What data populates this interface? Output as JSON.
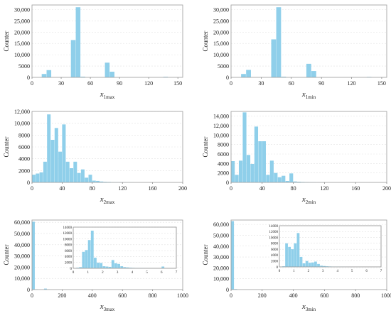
{
  "colors": {
    "bar": "#8fcfea",
    "frame": "#9a9a9a",
    "grid": "#e2e2e2"
  },
  "chart_data": [
    {
      "type": "bar",
      "id": "x1max",
      "xlabel_main": "x",
      "xlabel_sub": "1max",
      "ylabel": "Counter",
      "xlim": [
        0,
        155
      ],
      "ylim": [
        0,
        32000
      ],
      "xticks": [
        0,
        30,
        60,
        90,
        120,
        150
      ],
      "yticks": [
        0,
        5000,
        10000,
        15000,
        20000,
        25000,
        30000
      ],
      "ytick_labels": [
        "0",
        "5000",
        "10,000",
        "15,000",
        "20,000",
        "25,000",
        "30,000"
      ],
      "bin_width": 5,
      "bins": [
        [
          10,
          1500
        ],
        [
          15,
          3200
        ],
        [
          40,
          16500
        ],
        [
          45,
          31000
        ],
        [
          50,
          300
        ],
        [
          75,
          6500
        ],
        [
          80,
          2500
        ],
        [
          135,
          250
        ]
      ]
    },
    {
      "type": "bar",
      "id": "x1min",
      "xlabel_main": "x",
      "xlabel_sub": "1min",
      "ylabel": "Counter",
      "xlim": [
        0,
        155
      ],
      "ylim": [
        0,
        32000
      ],
      "xticks": [
        0,
        30,
        60,
        90,
        120,
        150
      ],
      "yticks": [
        0,
        5000,
        10000,
        15000,
        20000,
        25000,
        30000
      ],
      "ytick_labels": [
        "0",
        "5000",
        "10,000",
        "15,000",
        "20,000",
        "25,000",
        "30,000"
      ],
      "bin_width": 5,
      "bins": [
        [
          10,
          1500
        ],
        [
          15,
          3300
        ],
        [
          40,
          16800
        ],
        [
          45,
          31000
        ],
        [
          50,
          300
        ],
        [
          75,
          6000
        ],
        [
          80,
          2800
        ],
        [
          135,
          200
        ]
      ]
    },
    {
      "type": "bar",
      "id": "x2max",
      "xlabel_main": "x",
      "xlabel_sub": "2max",
      "ylabel": "Counter",
      "xlim": [
        0,
        200
      ],
      "ylim": [
        0,
        12000
      ],
      "xticks": [
        0,
        40,
        80,
        120,
        160,
        200
      ],
      "yticks": [
        0,
        2000,
        4000,
        6000,
        8000,
        10000,
        12000
      ],
      "ytick_labels": [
        "0",
        "2000",
        "4000",
        "6000",
        "8000",
        "10,000",
        "12,000"
      ],
      "bin_width": 5,
      "bins": [
        [
          0,
          1300
        ],
        [
          5,
          1500
        ],
        [
          10,
          1700
        ],
        [
          15,
          3500
        ],
        [
          20,
          11500
        ],
        [
          25,
          7200
        ],
        [
          30,
          9200
        ],
        [
          35,
          5200
        ],
        [
          40,
          9800
        ],
        [
          45,
          3500
        ],
        [
          50,
          2400
        ],
        [
          55,
          3500
        ],
        [
          60,
          1600
        ],
        [
          65,
          2200
        ],
        [
          70,
          800
        ],
        [
          75,
          1300
        ],
        [
          80,
          300
        ],
        [
          85,
          250
        ],
        [
          90,
          150
        ],
        [
          95,
          100
        ],
        [
          100,
          80
        ],
        [
          105,
          60
        ],
        [
          110,
          50
        ],
        [
          115,
          40
        ],
        [
          120,
          30
        ],
        [
          125,
          20
        ],
        [
          130,
          20
        ],
        [
          135,
          10
        ]
      ]
    },
    {
      "type": "bar",
      "id": "x2min",
      "xlabel_main": "x",
      "xlabel_sub": "2min",
      "ylabel": "Counter",
      "xlim": [
        0,
        200
      ],
      "ylim": [
        0,
        15000
      ],
      "xticks": [
        0,
        40,
        80,
        120,
        160,
        200
      ],
      "yticks": [
        0,
        2000,
        4000,
        6000,
        8000,
        10000,
        12000,
        14000
      ],
      "ytick_labels": [
        "0",
        "2000",
        "4000",
        "6000",
        "8000",
        "10,000",
        "12,000",
        "14,000"
      ],
      "bin_width": 5,
      "bins": [
        [
          0,
          4500
        ],
        [
          5,
          1600
        ],
        [
          10,
          4600
        ],
        [
          15,
          14800
        ],
        [
          20,
          5800
        ],
        [
          25,
          3900
        ],
        [
          30,
          11800
        ],
        [
          35,
          8700
        ],
        [
          40,
          8700
        ],
        [
          45,
          1600
        ],
        [
          50,
          4600
        ],
        [
          55,
          2000
        ],
        [
          60,
          1100
        ],
        [
          65,
          1400
        ],
        [
          70,
          300
        ],
        [
          75,
          1900
        ],
        [
          80,
          200
        ],
        [
          85,
          150
        ],
        [
          90,
          100
        ],
        [
          95,
          80
        ],
        [
          100,
          60
        ],
        [
          105,
          40
        ],
        [
          110,
          30
        ],
        [
          115,
          20
        ]
      ]
    },
    {
      "type": "bar",
      "id": "x3max",
      "xlabel_main": "x",
      "xlabel_sub": "3max",
      "ylabel": "Counter",
      "xlim": [
        0,
        1000
      ],
      "ylim": [
        0,
        62000
      ],
      "xticks": [
        0,
        200,
        400,
        600,
        800,
        1000
      ],
      "yticks": [
        0,
        10000,
        20000,
        30000,
        40000,
        50000,
        60000
      ],
      "ytick_labels": [
        "0",
        "10,000",
        "20,000",
        "30,000",
        "40,000",
        "50,000",
        "60,000"
      ],
      "bin_width": 20,
      "bins": [
        [
          0,
          60500
        ],
        [
          20,
          300
        ],
        [
          80,
          900
        ],
        [
          100,
          300
        ]
      ],
      "inset": {
        "xlim": [
          0,
          7
        ],
        "ylim": [
          0,
          14000
        ],
        "xticks": [
          0,
          1,
          2,
          3,
          4,
          5,
          6,
          7
        ],
        "yticks": [
          0,
          2000,
          4000,
          6000,
          8000,
          10000,
          12000,
          14000
        ],
        "bin_width": 0.2,
        "bins": [
          [
            0.2,
            200
          ],
          [
            0.4,
            400
          ],
          [
            0.6,
            5600
          ],
          [
            0.8,
            6200
          ],
          [
            1.0,
            9600
          ],
          [
            1.2,
            12800
          ],
          [
            1.4,
            3600
          ],
          [
            1.6,
            1900
          ],
          [
            1.8,
            1800
          ],
          [
            2.0,
            700
          ],
          [
            2.2,
            600
          ],
          [
            2.4,
            500
          ],
          [
            2.6,
            2800
          ],
          [
            2.8,
            1700
          ],
          [
            3.0,
            1500
          ],
          [
            3.2,
            700
          ],
          [
            3.4,
            400
          ],
          [
            3.6,
            300
          ],
          [
            3.8,
            200
          ],
          [
            4.0,
            150
          ],
          [
            4.2,
            120
          ],
          [
            4.4,
            100
          ],
          [
            4.6,
            80
          ],
          [
            4.8,
            60
          ],
          [
            5.0,
            50
          ],
          [
            5.2,
            40
          ],
          [
            5.4,
            30
          ],
          [
            5.6,
            20
          ],
          [
            5.8,
            10
          ],
          [
            6.0,
            600
          ]
        ]
      }
    },
    {
      "type": "bar",
      "id": "x3min",
      "xlabel_main": "x",
      "xlabel_sub": "3min",
      "ylabel": "Counter",
      "xlim": [
        0,
        1000
      ],
      "ylim": [
        0,
        64000
      ],
      "xticks": [
        0,
        200,
        400,
        600,
        800,
        1000
      ],
      "yticks": [
        0,
        10000,
        20000,
        30000,
        40000,
        50000,
        60000
      ],
      "ytick_labels": [
        "0",
        "10,000",
        "20,000",
        "30,000",
        "40,000",
        "50,000",
        "60,000"
      ],
      "bin_width": 20,
      "bins": [
        [
          0,
          63000
        ],
        [
          20,
          500
        ]
      ],
      "inset": {
        "xlim": [
          0,
          7
        ],
        "ylim": [
          0,
          14000
        ],
        "xticks": [
          0,
          1,
          2,
          3,
          4,
          5,
          6,
          7
        ],
        "yticks": [
          0,
          2000,
          4000,
          6000,
          8000,
          10000,
          12000,
          14000
        ],
        "bin_width": 0.2,
        "bins": [
          [
            0.2,
            200
          ],
          [
            0.4,
            8000
          ],
          [
            0.6,
            6800
          ],
          [
            0.8,
            6000
          ],
          [
            1.0,
            8000
          ],
          [
            1.2,
            11500
          ],
          [
            1.4,
            3400
          ],
          [
            1.6,
            1200
          ],
          [
            1.8,
            2000
          ],
          [
            2.0,
            1400
          ],
          [
            2.2,
            1500
          ],
          [
            2.4,
            1800
          ],
          [
            2.6,
            1000
          ],
          [
            2.8,
            400
          ],
          [
            3.0,
            300
          ],
          [
            3.2,
            200
          ],
          [
            3.4,
            150
          ],
          [
            3.6,
            100
          ],
          [
            3.8,
            80
          ],
          [
            4.0,
            60
          ],
          [
            4.2,
            40
          ],
          [
            4.4,
            30
          ],
          [
            4.6,
            20
          ],
          [
            4.8,
            10
          ]
        ]
      }
    }
  ]
}
